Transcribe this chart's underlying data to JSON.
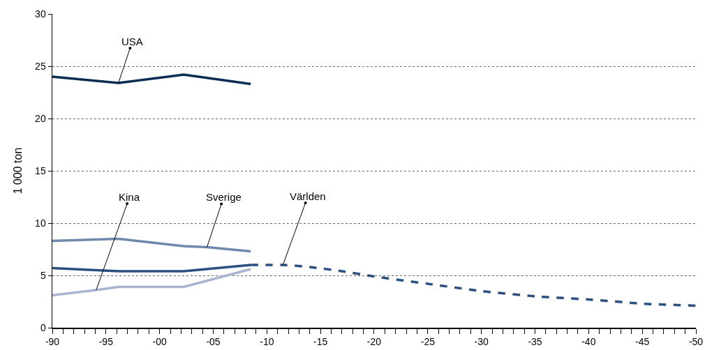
{
  "chart_data": {
    "type": "line",
    "ylabel": "1 000 ton",
    "xlim": [
      "1990",
      "2050"
    ],
    "ylim": [
      0,
      30
    ],
    "yticks": [
      0,
      5,
      10,
      15,
      20,
      25,
      30
    ],
    "xticks": [
      {
        "value": "1990",
        "label": "-90"
      },
      {
        "value": "1991",
        "label": null
      },
      {
        "value": "1992",
        "label": null
      },
      {
        "value": "1993",
        "label": null
      },
      {
        "value": "1994",
        "label": null
      },
      {
        "value": "1995",
        "label": "-95"
      },
      {
        "value": "1996",
        "label": null
      },
      {
        "value": "1997",
        "label": null
      },
      {
        "value": "1998",
        "label": null
      },
      {
        "value": "1999",
        "label": null
      },
      {
        "value": "2000",
        "label": "-00"
      },
      {
        "value": "2001",
        "label": null
      },
      {
        "value": "2002",
        "label": null
      },
      {
        "value": "2003",
        "label": null
      },
      {
        "value": "2004",
        "label": null
      },
      {
        "value": "2005",
        "label": "-05"
      },
      {
        "value": "2006",
        "label": null
      },
      {
        "value": "2007",
        "label": null
      },
      {
        "value": "2008",
        "label": null
      },
      {
        "value": "2009",
        "label": null
      },
      {
        "value": "2010",
        "label": "-10"
      },
      {
        "value": "2011",
        "label": null
      },
      {
        "value": "2012",
        "label": null
      },
      {
        "value": "2013",
        "label": null
      },
      {
        "value": "2014",
        "label": null
      },
      {
        "value": "2015",
        "label": "-15"
      },
      {
        "value": "2016",
        "label": null
      },
      {
        "value": "2017",
        "label": null
      },
      {
        "value": "2018",
        "label": null
      },
      {
        "value": "2019",
        "label": null
      },
      {
        "value": "2020",
        "label": "-20"
      },
      {
        "value": "2021",
        "label": null
      },
      {
        "value": "2022",
        "label": null
      },
      {
        "value": "2023",
        "label": null
      },
      {
        "value": "2024",
        "label": null
      },
      {
        "value": "2025",
        "label": "-25"
      },
      {
        "value": "2026",
        "label": null
      },
      {
        "value": "2027",
        "label": null
      },
      {
        "value": "2028",
        "label": null
      },
      {
        "value": "2029",
        "label": null
      },
      {
        "value": "2030",
        "label": "-30"
      },
      {
        "value": "2031",
        "label": null
      },
      {
        "value": "2032",
        "label": null
      },
      {
        "value": "2033",
        "label": null
      },
      {
        "value": "2034",
        "label": null
      },
      {
        "value": "2035",
        "label": "-35"
      },
      {
        "value": "2036",
        "label": null
      },
      {
        "value": "2037",
        "label": null
      },
      {
        "value": "2038",
        "label": null
      },
      {
        "value": "2039",
        "label": null
      },
      {
        "value": "2040",
        "label": "-40"
      },
      {
        "value": "2041",
        "label": null
      },
      {
        "value": "2042",
        "label": null
      },
      {
        "value": "2043",
        "label": null
      },
      {
        "value": "2044",
        "label": null
      },
      {
        "value": "2045",
        "label": "-45"
      },
      {
        "value": "2046",
        "label": null
      },
      {
        "value": "2047",
        "label": null
      },
      {
        "value": "2048",
        "label": null
      },
      {
        "value": "2049",
        "label": null
      },
      {
        "value": "2050",
        "label": "-50"
      }
    ],
    "grid": "y",
    "legend": false,
    "marker": "none",
    "series": [
      {
        "name": "USA",
        "color": "#0a2d55",
        "x": [
          "1990",
          "1996-03",
          "2002-04",
          "2008-07"
        ],
        "values": [
          24.0,
          23.4,
          24.2,
          23.3
        ]
      },
      {
        "name": "Sverige",
        "color": "#7088ad",
        "x": [
          "1990",
          "1996-03",
          "2002-04",
          "2004-06",
          "2008-07"
        ],
        "values": [
          8.3,
          8.5,
          7.8,
          7.7,
          7.3
        ]
      },
      {
        "color": "#2b4f80",
        "x": [
          "1990",
          "1996-03",
          "2002-04",
          "2008-07"
        ],
        "values": [
          5.7,
          5.4,
          5.4,
          6.0
        ]
      },
      {
        "name": "Kina",
        "color": "#a9b5d0",
        "x": [
          "1990",
          "1994-02",
          "1996-03",
          "2002-04",
          "2008-07"
        ],
        "values": [
          3.1,
          3.6,
          3.9,
          3.9,
          5.6
        ]
      },
      {
        "name": "Världen",
        "color": "#2b4f80",
        "line_style": "dashed",
        "x": [
          "2008-07",
          "2010",
          "2011-07",
          "2014",
          "2017",
          "2020",
          "2025",
          "2030",
          "2035",
          "2040",
          "2045",
          "2050"
        ],
        "values": [
          6.0,
          6.0,
          6.0,
          5.8,
          5.4,
          4.9,
          4.2,
          3.5,
          3.0,
          2.7,
          2.3,
          2.1
        ]
      }
    ]
  }
}
